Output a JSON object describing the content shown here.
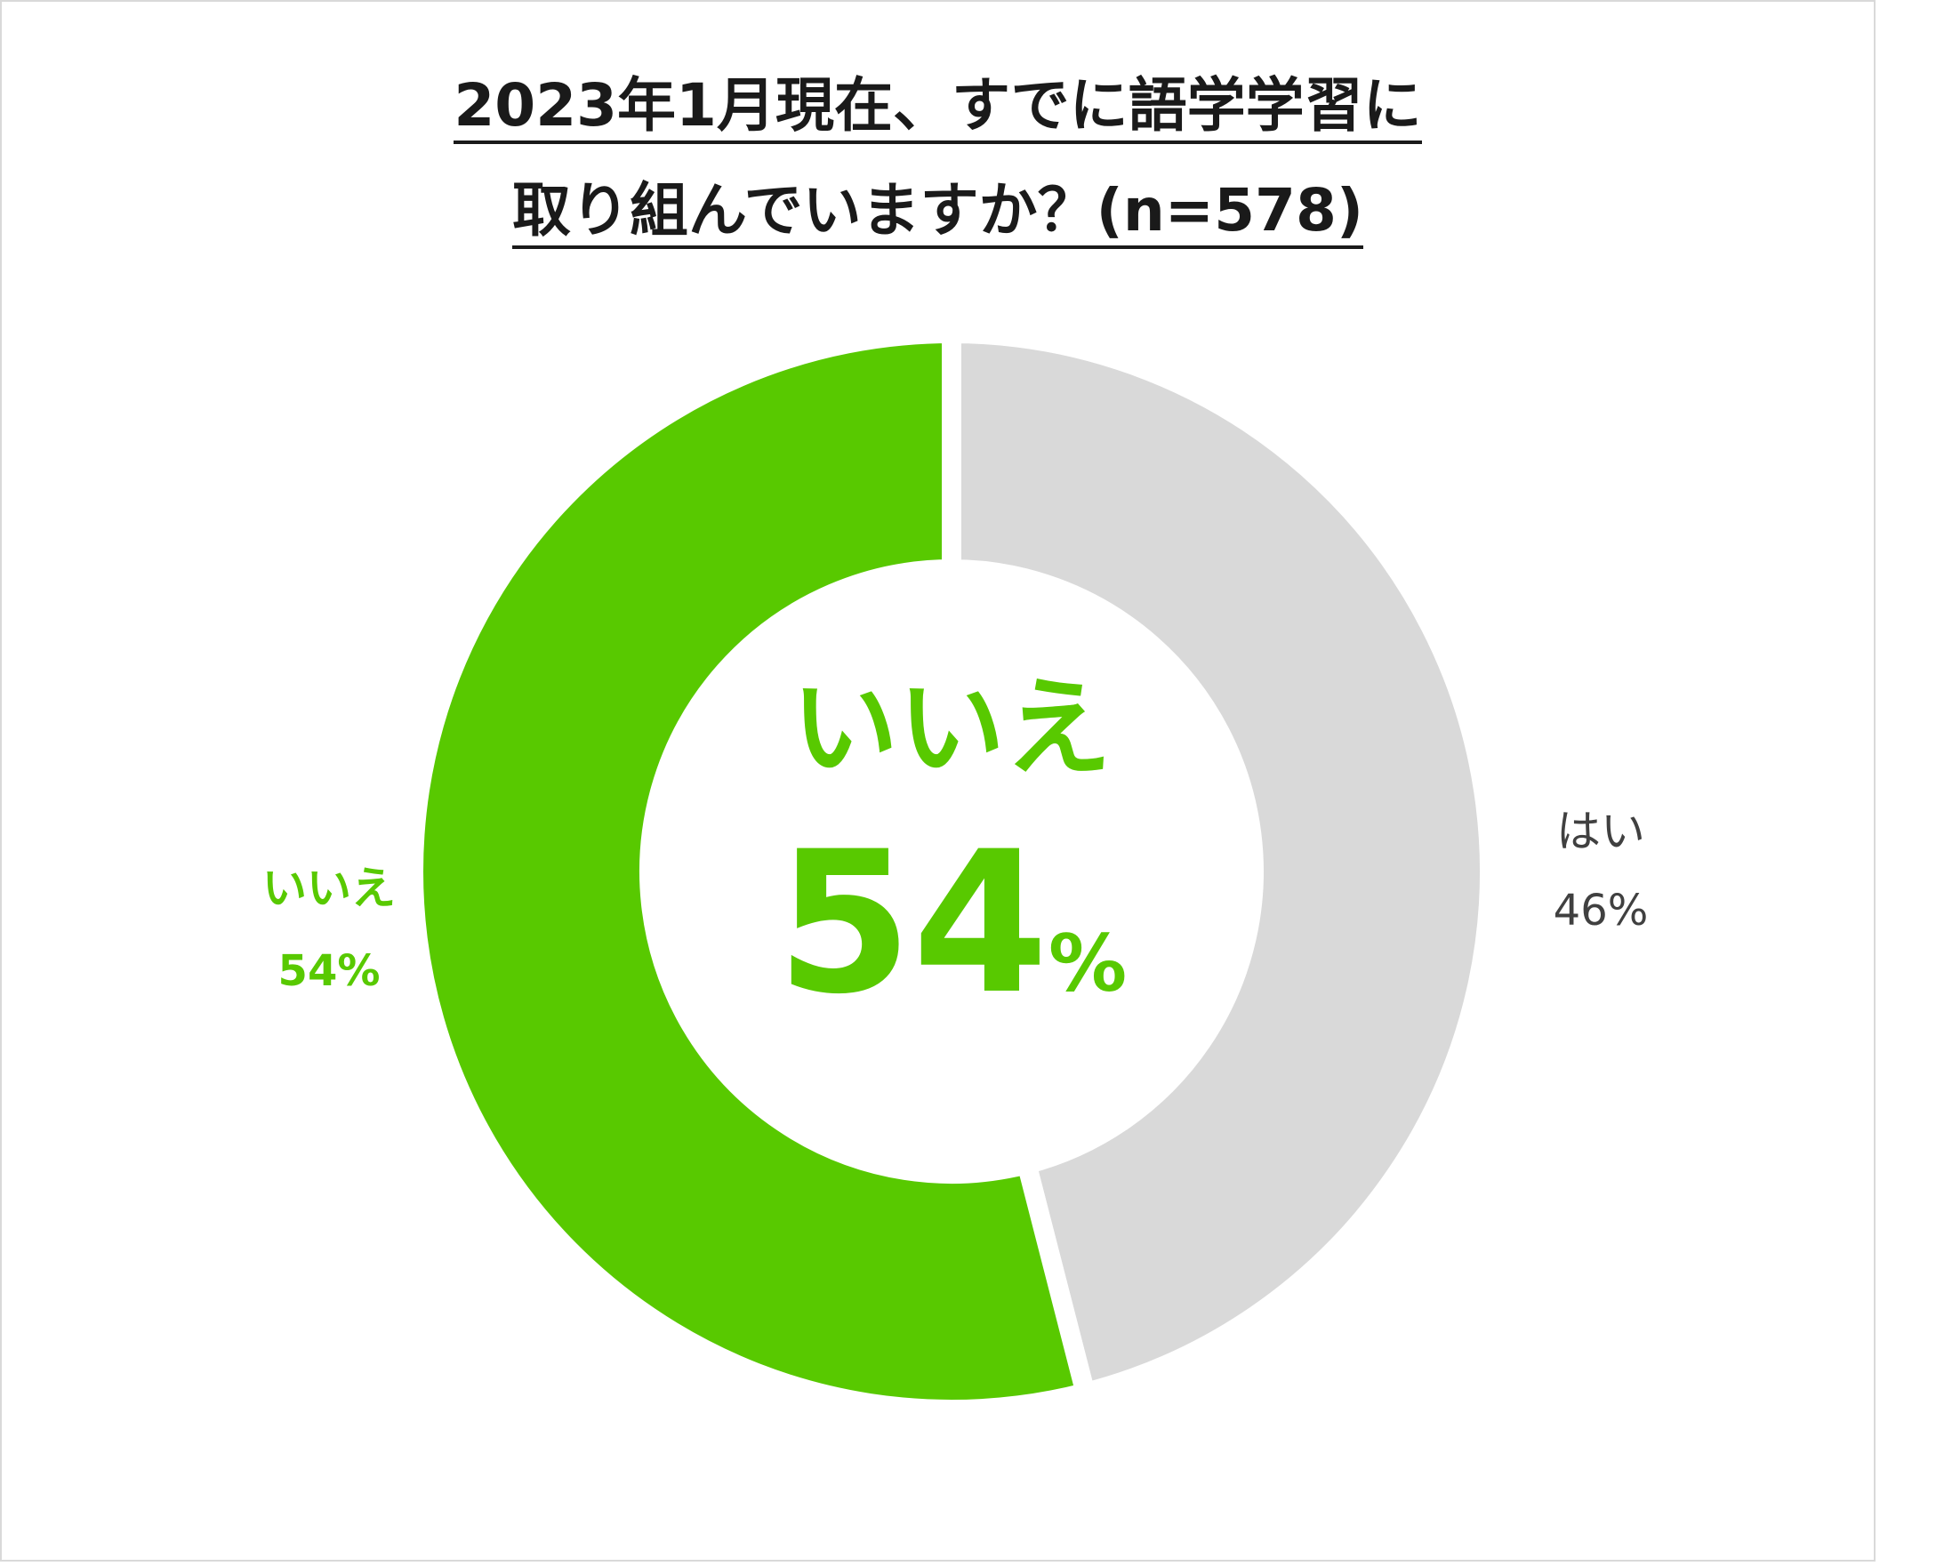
{
  "chart_data": {
    "type": "pie",
    "title_line1": "2023年1月現在、すでに語学学習に",
    "title_line2": "取り組んでいますか？(n=578)",
    "slices": [
      {
        "label": "はい",
        "value": 46,
        "value_text": "46%",
        "color": "#d9d9d9"
      },
      {
        "label": "いいえ",
        "value": 54,
        "value_text": "54%",
        "color": "#58c900"
      }
    ],
    "center": {
      "category": "いいえ",
      "value": "54",
      "unit": "%"
    }
  }
}
